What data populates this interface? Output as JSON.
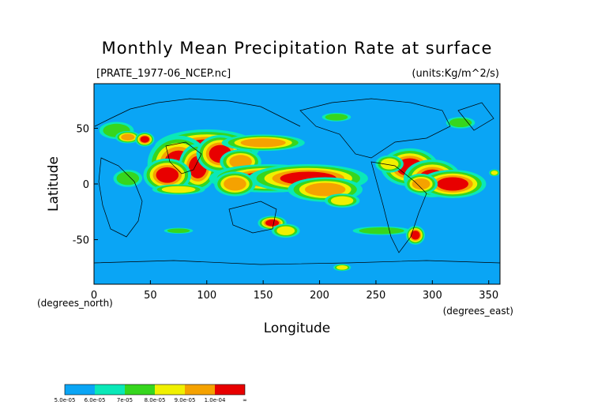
{
  "chart_data": {
    "type": "heatmap",
    "title": "Monthly Mean Precipitation Rate at surface",
    "source_label": "[PRATE_1977-06_NCEP.nc]",
    "units_label": "(units:Kg/m^2/s)",
    "xlabel": "Longitude",
    "ylabel": "Latitude",
    "x_unit_label": "(degrees_east)",
    "y_unit_label": "(degrees_north)",
    "xlim": [
      0,
      360
    ],
    "ylim": [
      -90,
      90
    ],
    "x_ticks": [
      "0",
      "50",
      "100",
      "150",
      "200",
      "250",
      "300",
      "350"
    ],
    "x_tick_values": [
      0,
      50,
      100,
      150,
      200,
      250,
      300,
      350
    ],
    "y_ticks": [
      "50",
      "0",
      "-50"
    ],
    "y_tick_values": [
      50,
      0,
      -50
    ],
    "colorbar": {
      "labels": [
        "5.0e-05",
        "6.0e-05",
        "7e-05",
        "8.0e-05",
        "9.0e-05",
        "1.0e-04",
        "∞"
      ],
      "colors": [
        "#0aa5f5",
        "#0ae8b8",
        "#36d61e",
        "#f0f000",
        "#f5a200",
        "#e80000"
      ]
    },
    "blobs": [
      {
        "lon": 100,
        "lat": 32,
        "rx": 22,
        "ry": 8,
        "level": 5
      },
      {
        "lon": 75,
        "lat": 18,
        "rx": 13,
        "ry": 12,
        "level": 5
      },
      {
        "lon": 92,
        "lat": 15,
        "rx": 8,
        "ry": 10,
        "level": 5
      },
      {
        "lon": 65,
        "lat": 8,
        "rx": 10,
        "ry": 7,
        "level": 5
      },
      {
        "lon": 112,
        "lat": 27,
        "rx": 10,
        "ry": 8,
        "level": 5
      },
      {
        "lon": 150,
        "lat": 37,
        "rx": 20,
        "ry": 4,
        "level": 4
      },
      {
        "lon": 130,
        "lat": 20,
        "rx": 10,
        "ry": 6,
        "level": 4
      },
      {
        "lon": 155,
        "lat": 5,
        "rx": 25,
        "ry": 6,
        "level": 5
      },
      {
        "lon": 190,
        "lat": 5,
        "rx": 25,
        "ry": 6,
        "level": 5
      },
      {
        "lon": 205,
        "lat": -5,
        "rx": 18,
        "ry": 6,
        "level": 4
      },
      {
        "lon": 220,
        "lat": -15,
        "rx": 10,
        "ry": 4,
        "level": 3
      },
      {
        "lon": 125,
        "lat": 0,
        "rx": 10,
        "ry": 6,
        "level": 4
      },
      {
        "lon": 75,
        "lat": -5,
        "rx": 15,
        "ry": 3,
        "level": 3
      },
      {
        "lon": 30,
        "lat": 5,
        "rx": 10,
        "ry": 6,
        "level": 2
      },
      {
        "lon": 20,
        "lat": 48,
        "rx": 12,
        "ry": 6,
        "level": 2
      },
      {
        "lon": 30,
        "lat": 42,
        "rx": 6,
        "ry": 3,
        "level": 4
      },
      {
        "lon": 45,
        "lat": 40,
        "rx": 4,
        "ry": 3,
        "level": 5
      },
      {
        "lon": 280,
        "lat": 15,
        "rx": 12,
        "ry": 8,
        "level": 5
      },
      {
        "lon": 300,
        "lat": 5,
        "rx": 12,
        "ry": 8,
        "level": 5
      },
      {
        "lon": 318,
        "lat": 0,
        "rx": 14,
        "ry": 6,
        "level": 5
      },
      {
        "lon": 290,
        "lat": 0,
        "rx": 8,
        "ry": 5,
        "level": 4
      },
      {
        "lon": 262,
        "lat": 18,
        "rx": 8,
        "ry": 5,
        "level": 3
      },
      {
        "lon": 158,
        "lat": -35,
        "rx": 6,
        "ry": 3,
        "level": 5
      },
      {
        "lon": 170,
        "lat": -42,
        "rx": 8,
        "ry": 4,
        "level": 3
      },
      {
        "lon": 75,
        "lat": -42,
        "rx": 10,
        "ry": 2,
        "level": 2
      },
      {
        "lon": 255,
        "lat": -42,
        "rx": 20,
        "ry": 3,
        "level": 2
      },
      {
        "lon": 285,
        "lat": -46,
        "rx": 4,
        "ry": 4,
        "level": 5
      },
      {
        "lon": 215,
        "lat": 60,
        "rx": 10,
        "ry": 3,
        "level": 2
      },
      {
        "lon": 325,
        "lat": 55,
        "rx": 10,
        "ry": 4,
        "level": 2
      },
      {
        "lon": 355,
        "lat": 10,
        "rx": 3,
        "ry": 2,
        "level": 3
      },
      {
        "lon": 220,
        "lat": -75,
        "rx": 5,
        "ry": 2,
        "level": 3
      }
    ]
  }
}
